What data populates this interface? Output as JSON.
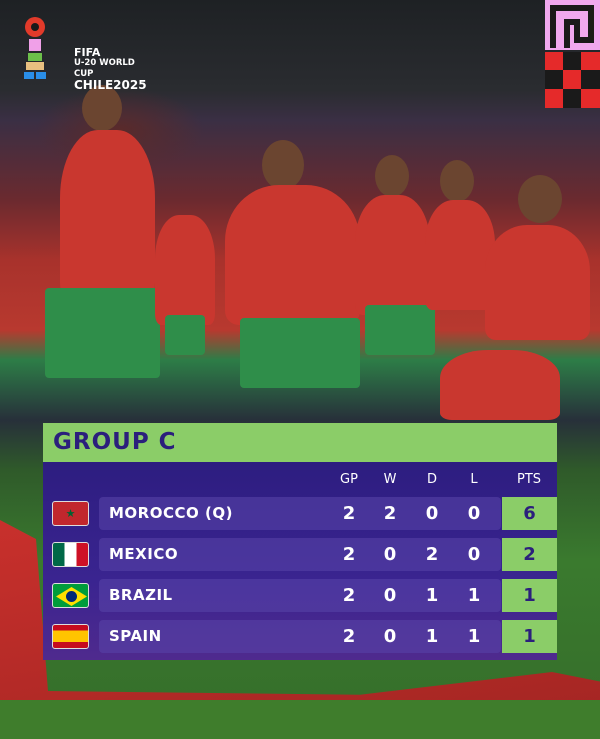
{
  "branding": {
    "logo_lines": [
      "FIFA",
      "U-20 WORLD CUP",
      "CHILE2025"
    ]
  },
  "table": {
    "title": "GROUP C",
    "columns": [
      "GP",
      "W",
      "D",
      "L",
      "PTS"
    ],
    "rows": [
      {
        "team": "MOROCCO  (Q)",
        "flag": "morocco-flag",
        "gp": "2",
        "w": "2",
        "d": "0",
        "l": "0",
        "pts": "6"
      },
      {
        "team": "MEXICO",
        "flag": "mexico-flag",
        "gp": "2",
        "w": "0",
        "d": "2",
        "l": "0",
        "pts": "2"
      },
      {
        "team": "BRAZIL",
        "flag": "brazil-flag",
        "gp": "2",
        "w": "0",
        "d": "1",
        "l": "1",
        "pts": "1"
      },
      {
        "team": "SPAIN",
        "flag": "spain-flag",
        "gp": "2",
        "w": "0",
        "d": "1",
        "l": "1",
        "pts": "1"
      }
    ]
  },
  "colors": {
    "accent_green": "#8bcd68",
    "panel_purple": "#2d1d80",
    "team_red": "#c9372f"
  }
}
